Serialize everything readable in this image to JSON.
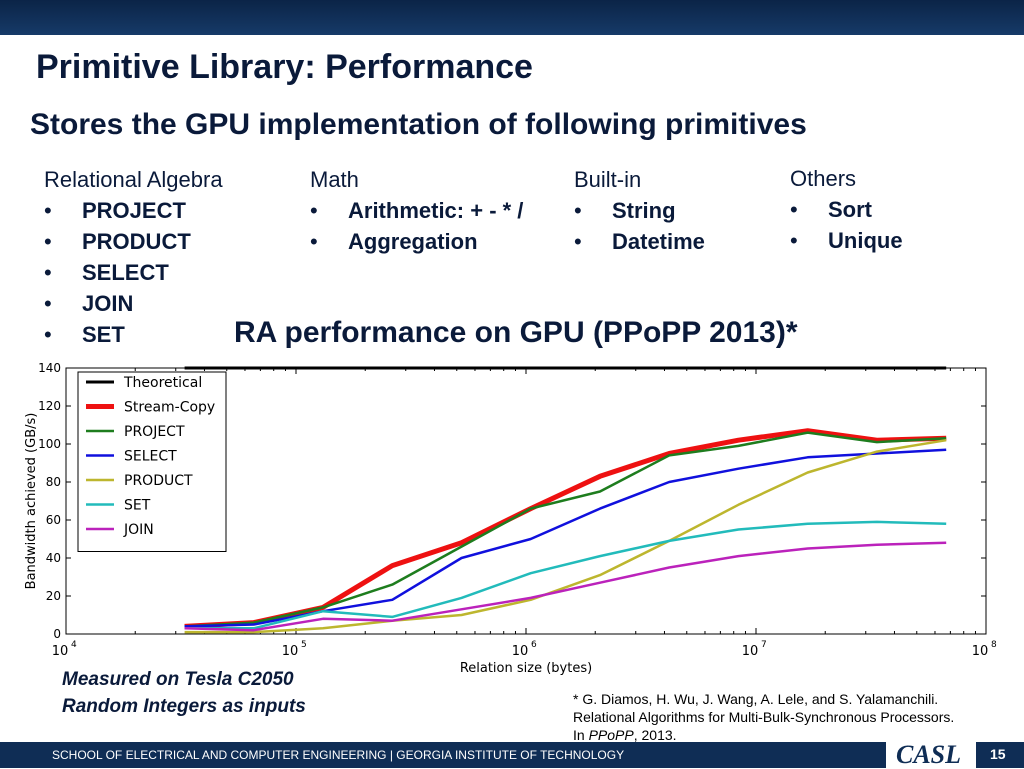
{
  "slide": {
    "title": "Primitive Library: Performance",
    "subtitle": "Stores the GPU implementation of following primitives",
    "bullet_symbol": "•",
    "columns": [
      {
        "heading": "Relational Algebra",
        "items": [
          "PROJECT",
          "PRODUCT",
          "SELECT",
          "JOIN",
          "SET"
        ]
      },
      {
        "heading": "Math",
        "items": [
          "Arithmetic: + - * /",
          "Aggregation"
        ]
      },
      {
        "heading": "Built-in",
        "items": [
          "String",
          "Datetime"
        ]
      },
      {
        "heading": "Others",
        "items": [
          "Sort",
          "Unique"
        ]
      }
    ],
    "chart_heading": "RA performance on GPU (PPoPP 2013)*",
    "notes": [
      "Measured on Tesla C2050",
      "Random Integers as inputs"
    ],
    "citation": {
      "line1": "* G. Diamos, H. Wu, J. Wang, A. Lele, and S. Yalamanchili.",
      "line2": "Relational Algorithms for Multi-Bulk-Synchronous Processors.",
      "line3_prefix": "In ",
      "venue": "PPoPP",
      "line3_suffix": ", 2013."
    },
    "footer": "SCHOOL OF ELECTRICAL AND COMPUTER ENGINEERING | GEORGIA INSTITUTE OF TECHNOLOGY",
    "logo": "CASL",
    "page_number": "15"
  },
  "chart_data": {
    "type": "line",
    "title": "",
    "xlabel": "Relation size (bytes)",
    "ylabel": "Bandwidth achieved (GB/s)",
    "x_scale": "log",
    "xlim": [
      10000,
      100000000
    ],
    "ylim": [
      0,
      140
    ],
    "x_ticks": [
      10000,
      100000,
      1000000,
      10000000,
      100000000
    ],
    "x_tick_labels": [
      {
        "base": "10",
        "exp": "4"
      },
      {
        "base": "10",
        "exp": "5"
      },
      {
        "base": "10",
        "exp": "6"
      },
      {
        "base": "10",
        "exp": "7"
      },
      {
        "base": "10",
        "exp": "8"
      }
    ],
    "y_ticks": [
      0,
      20,
      40,
      60,
      80,
      100,
      120,
      140
    ],
    "grid": false,
    "legend_position": "top-left",
    "x": [
      32768,
      65536,
      131072,
      262144,
      524288,
      1048576,
      2097152,
      4194304,
      8388608,
      16777216,
      33554432,
      67108864
    ],
    "series": [
      {
        "name": "Theoretical",
        "color": "#000000",
        "width": 3,
        "values": [
          140,
          140,
          140,
          140,
          140,
          140,
          140,
          140,
          140,
          140,
          140,
          140
        ]
      },
      {
        "name": "Stream-Copy",
        "color": "#ee1111",
        "width": 5,
        "values": [
          4,
          6,
          14,
          36,
          48,
          66,
          83,
          95,
          102,
          107,
          102,
          103
        ]
      },
      {
        "name": "PROJECT",
        "color": "#1e7d1e",
        "width": 2.5,
        "values": [
          4,
          6,
          14,
          26,
          46,
          66,
          75,
          94,
          99,
          106,
          101,
          103
        ]
      },
      {
        "name": "SELECT",
        "color": "#1010dd",
        "width": 2.5,
        "values": [
          4,
          5,
          12,
          18,
          40,
          50,
          66,
          80,
          87,
          93,
          95,
          97
        ]
      },
      {
        "name": "PRODUCT",
        "color": "#bdb62e",
        "width": 2.5,
        "values": [
          1,
          1,
          3,
          7,
          10,
          18,
          31,
          49,
          68,
          85,
          96,
          102
        ]
      },
      {
        "name": "SET",
        "color": "#22bbbb",
        "width": 2.5,
        "values": [
          3,
          3,
          12,
          9,
          19,
          32,
          41,
          49,
          55,
          58,
          59,
          58
        ]
      },
      {
        "name": "JOIN",
        "color": "#bb22bb",
        "width": 2.5,
        "values": [
          3,
          2,
          8,
          7,
          13,
          19,
          27,
          35,
          41,
          45,
          47,
          48
        ]
      }
    ]
  }
}
